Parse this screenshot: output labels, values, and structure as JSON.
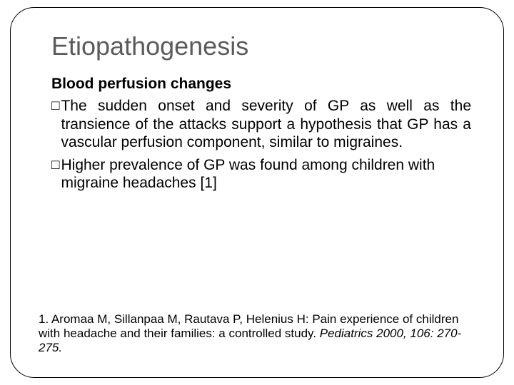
{
  "slide": {
    "title": "Etiopathogenesis",
    "subtitle": "Blood perfusion changes",
    "bullets": [
      {
        "text": "The sudden onset and severity of GP as well as the transience of the attacks support a hypothesis that GP has a vascular  perfusion component, similar to migraines."
      },
      {
        "text": " Higher prevalence of GP was found among children with migraine headaches [1]"
      }
    ],
    "footnote_plain": "1. Aromaa M, Sillanpaa M, Rautava P, Helenius H: Pain experience of children with headache and their families: a controlled study. ",
    "footnote_italic": "Pediatrics 2000, 106: 270-275.",
    "colors": {
      "title": "#5b5b5b",
      "body": "#000000",
      "border": "#000000",
      "background": "#ffffff"
    },
    "fontsize": {
      "title": 36,
      "subtitle": 21,
      "body": 21,
      "footnote": 17
    }
  }
}
